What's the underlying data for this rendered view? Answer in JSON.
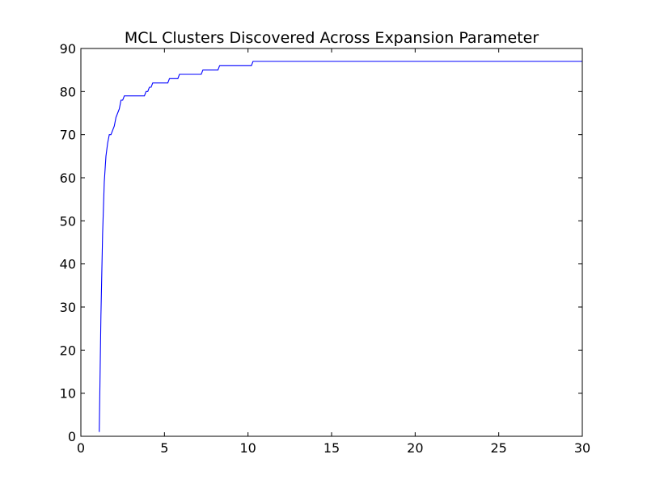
{
  "chart_data": {
    "type": "line",
    "title": "MCL Clusters Discovered Across Expansion Parameter",
    "xlabel": "",
    "ylabel": "",
    "xlim": [
      0,
      30
    ],
    "ylim": [
      0,
      90
    ],
    "xticks": [
      0,
      5,
      10,
      15,
      20,
      25,
      30
    ],
    "yticks": [
      0,
      10,
      20,
      30,
      40,
      50,
      60,
      70,
      80,
      90
    ],
    "grid": false,
    "legend": "none",
    "series": [
      {
        "color": "#0000ff",
        "x": [
          1.1,
          1.2,
          1.3,
          1.4,
          1.5,
          1.6,
          1.7,
          1.8,
          1.9,
          2.0,
          2.1,
          2.2,
          2.3,
          2.4,
          2.5,
          2.6,
          2.7,
          3.0,
          3.5,
          3.8,
          3.9,
          4.0,
          4.1,
          4.2,
          4.3,
          4.5,
          5.0,
          5.2,
          5.3,
          5.7,
          5.8,
          5.9,
          6.0,
          7.0,
          7.2,
          7.3,
          8.0,
          8.2,
          8.3,
          9.0,
          10.0,
          10.2,
          10.3,
          12.0,
          15.0,
          20.0,
          25.0,
          30.0
        ],
        "y": [
          1,
          28,
          47,
          59,
          65,
          68,
          70,
          70,
          71,
          72,
          74,
          75,
          76,
          78,
          78,
          79,
          79,
          79,
          79,
          79,
          80,
          80,
          81,
          81,
          82,
          82,
          82,
          82,
          83,
          83,
          83,
          84,
          84,
          84,
          84,
          85,
          85,
          85,
          86,
          86,
          86,
          86,
          87,
          87,
          87,
          87,
          87,
          87
        ]
      }
    ]
  }
}
